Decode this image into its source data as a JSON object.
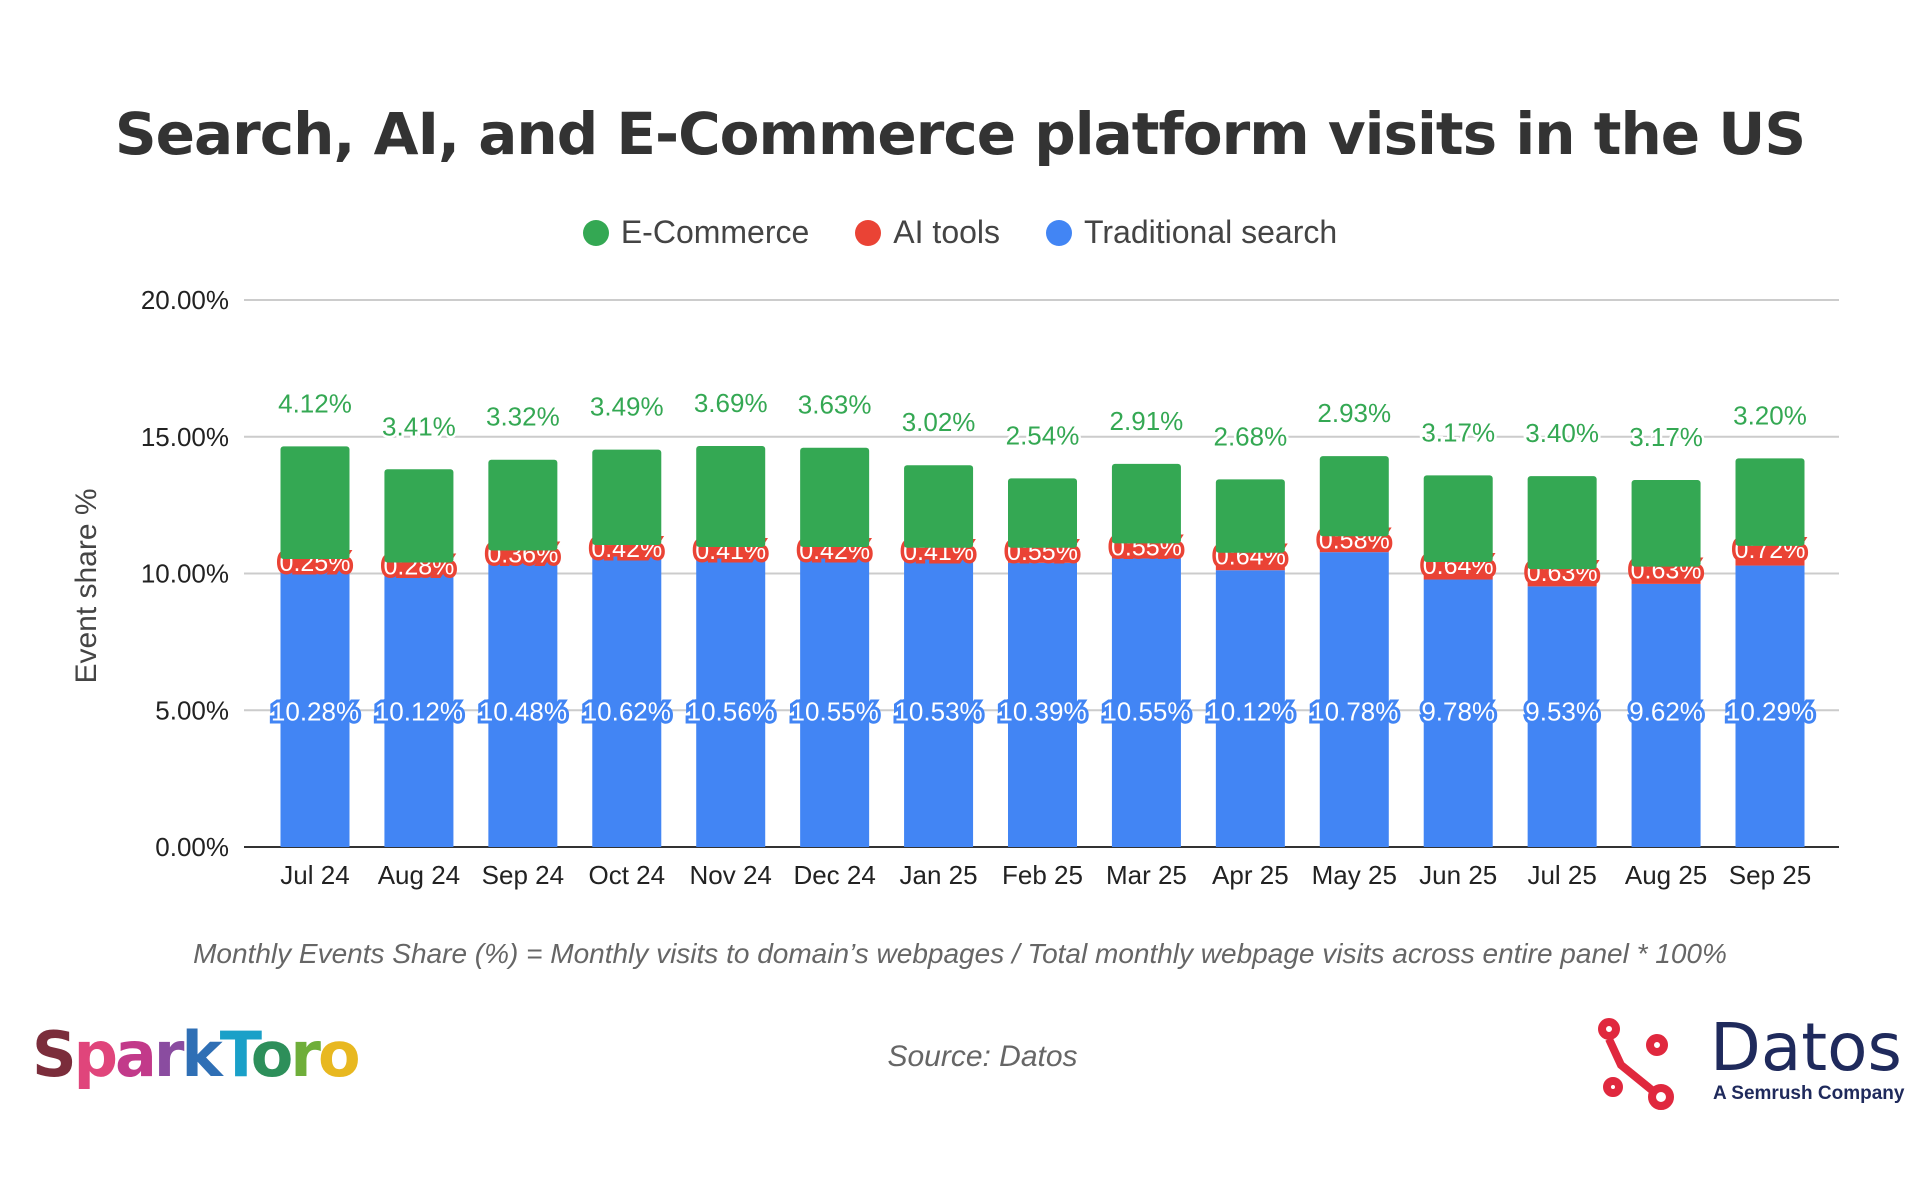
{
  "chart_data": {
    "type": "bar",
    "stacked": true,
    "title": "Search, AI, and E-Commerce platform visits in the US",
    "ylabel": "Event share %",
    "xlabel": "",
    "ylim": [
      0,
      20
    ],
    "yticks": [
      "0.00%",
      "5.00%",
      "10.00%",
      "15.00%",
      "20.00%"
    ],
    "grid": true,
    "legend_position": "top",
    "categories": [
      "Jul 24",
      "Aug 24",
      "Sep 24",
      "Oct 24",
      "Nov 24",
      "Dec 24",
      "Jan 25",
      "Feb 25",
      "Mar 25",
      "Apr 25",
      "May 25",
      "Jun 25",
      "Jul 25",
      "Aug 25",
      "Sep 25"
    ],
    "series": [
      {
        "name": "Traditional search",
        "color": "#4285f4",
        "values": [
          10.28,
          10.12,
          10.48,
          10.62,
          10.56,
          10.55,
          10.53,
          10.39,
          10.55,
          10.12,
          10.78,
          9.78,
          9.53,
          9.62,
          10.29
        ]
      },
      {
        "name": "AI tools",
        "color": "#ea4335",
        "values": [
          0.25,
          0.28,
          0.36,
          0.42,
          0.41,
          0.42,
          0.41,
          0.55,
          0.55,
          0.64,
          0.58,
          0.64,
          0.63,
          0.63,
          0.72
        ]
      },
      {
        "name": "E-Commerce",
        "color": "#34a853",
        "values": [
          4.12,
          3.41,
          3.32,
          3.49,
          3.69,
          3.63,
          3.02,
          2.54,
          2.91,
          2.68,
          2.93,
          3.17,
          3.4,
          3.17,
          3.2
        ]
      }
    ],
    "legend_order": [
      "E-Commerce",
      "AI tools",
      "Traditional search"
    ]
  },
  "footnote": "Monthly Events Share (%) = Monthly visits to domain’s webpages / Total monthly webpage visits across entire panel * 100%",
  "source": "Source: Datos",
  "logos": {
    "sparktoro": "SparkToro",
    "datos": "Datos",
    "datos_tagline": "A Semrush Company"
  }
}
